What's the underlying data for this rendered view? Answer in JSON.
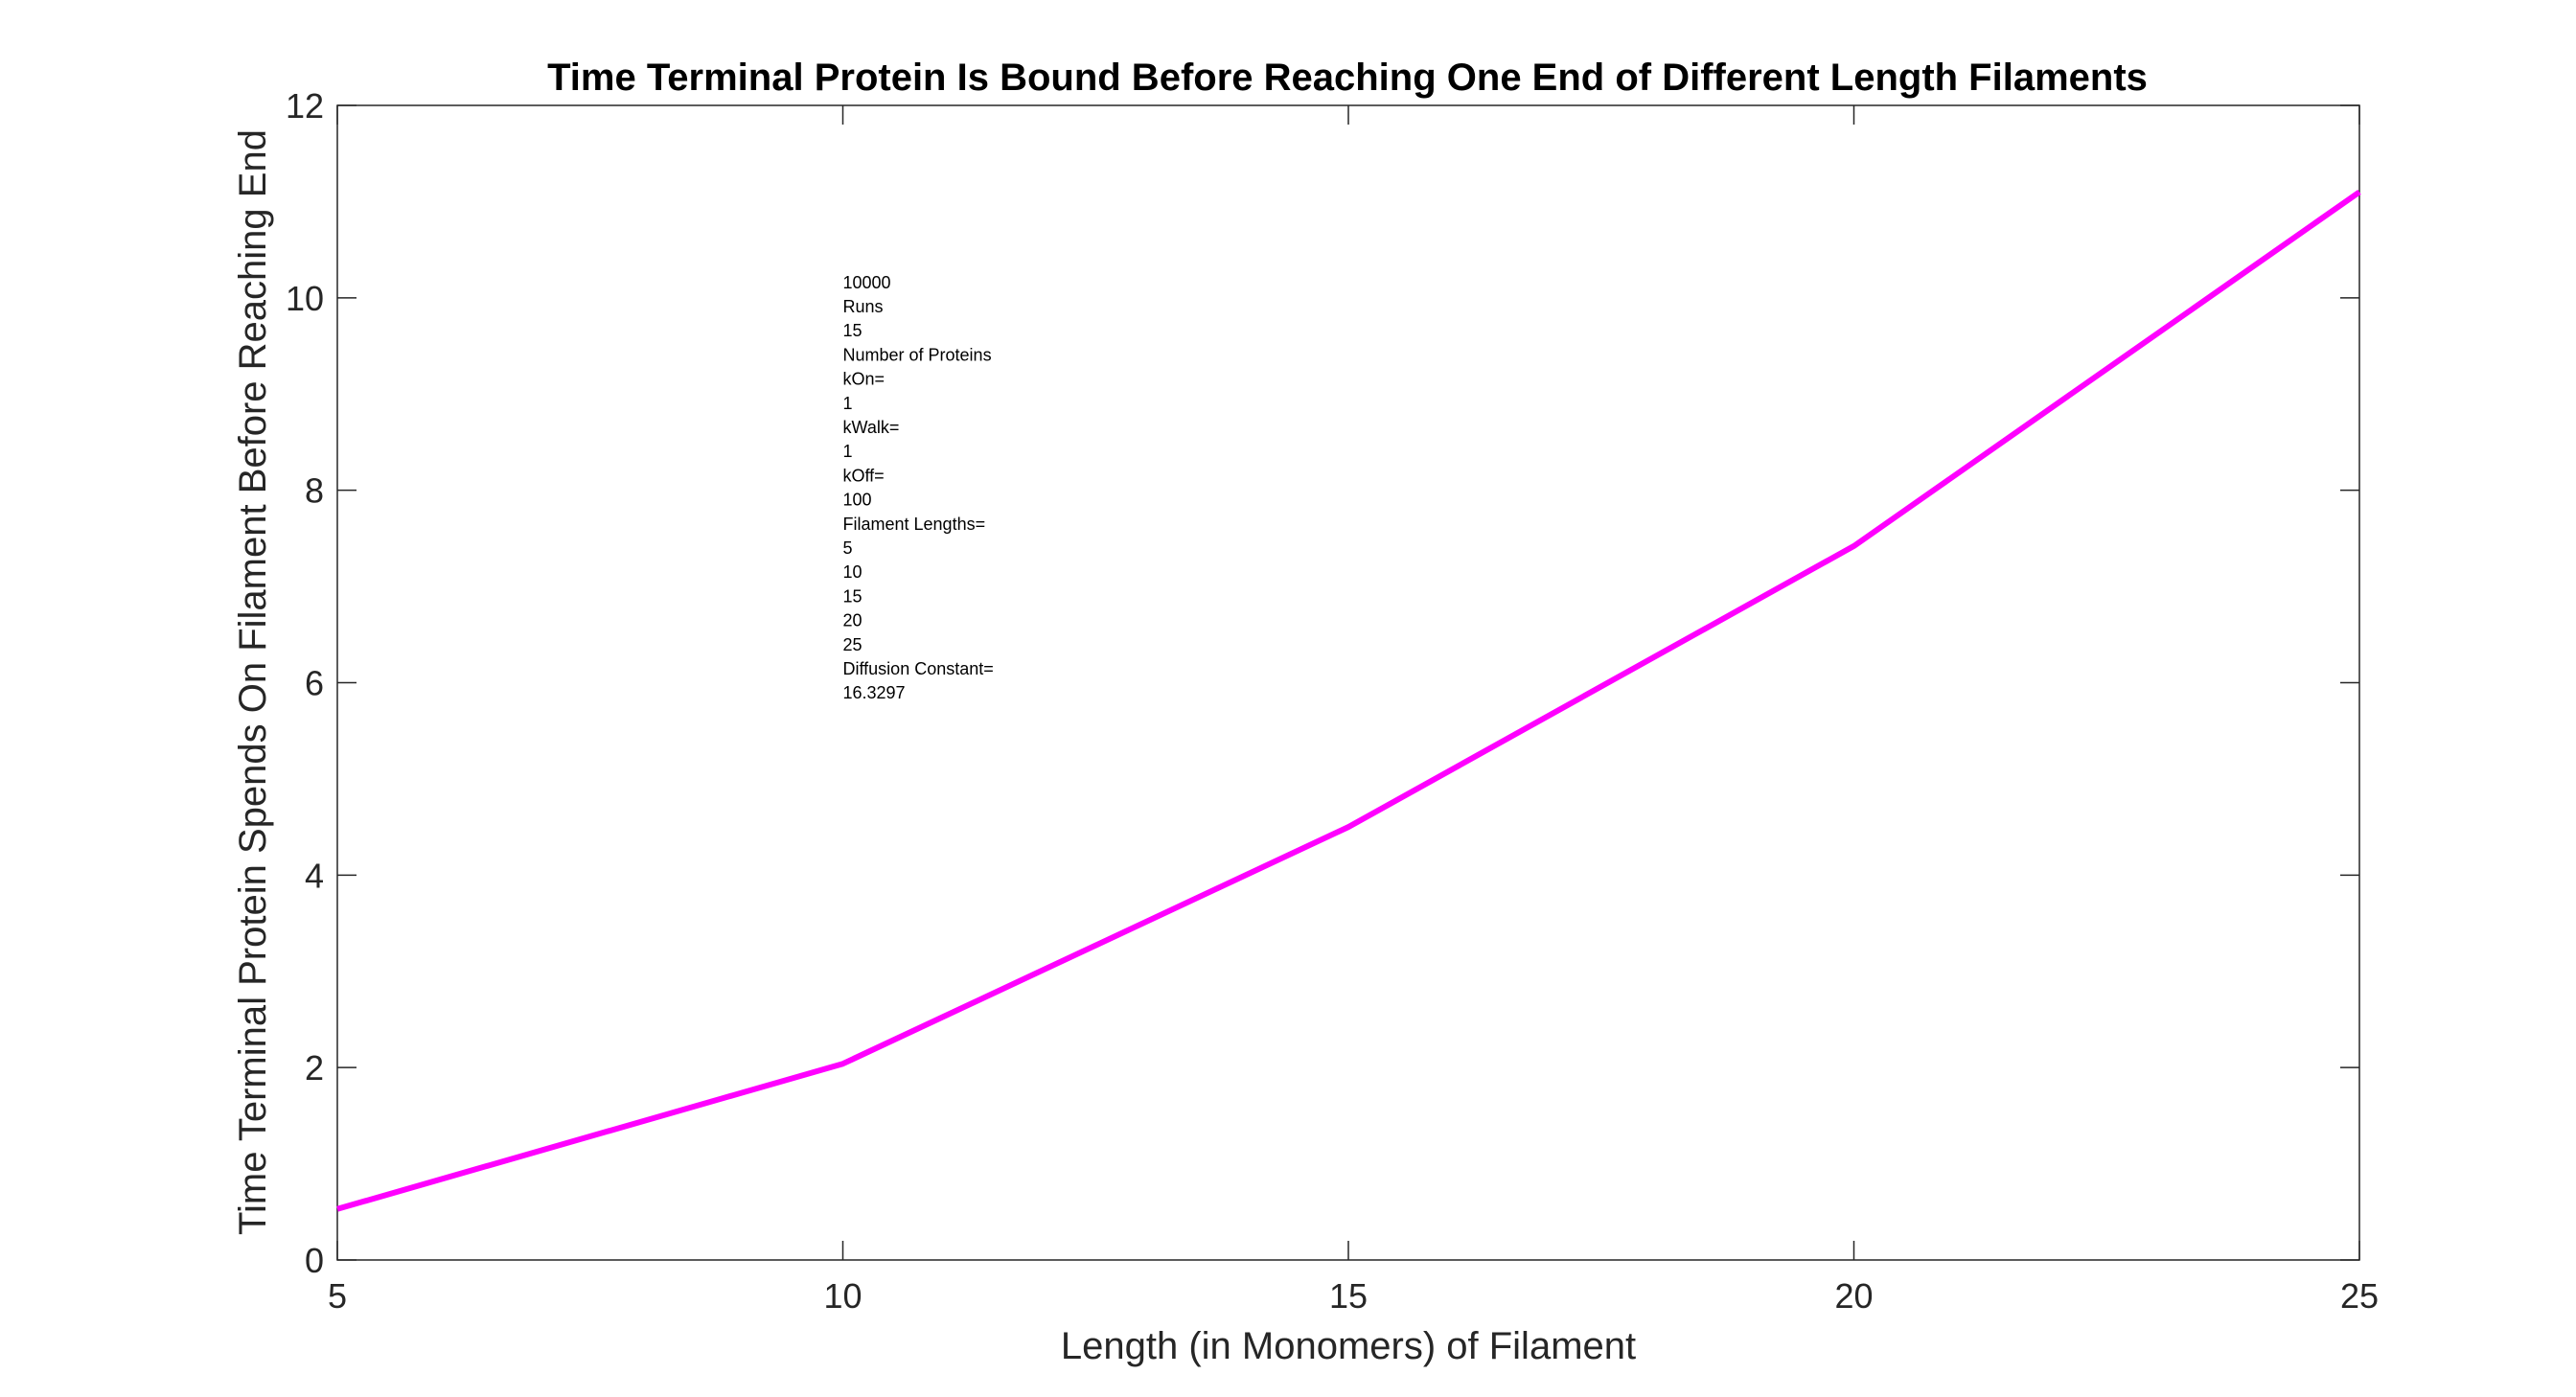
{
  "chart_data": {
    "type": "line",
    "title": "Time Terminal Protein Is Bound Before Reaching One End of Different Length Filaments",
    "xlabel": "Length (in Monomers) of Filament",
    "ylabel": "Time Terminal Protein Spends On Filament Before Reaching End",
    "xlim": [
      5,
      25
    ],
    "ylim": [
      0,
      12
    ],
    "xticks": [
      5,
      10,
      15,
      20,
      25
    ],
    "yticks": [
      0,
      2,
      4,
      6,
      8,
      10,
      12
    ],
    "grid": false,
    "series": [
      {
        "x": [
          5,
          10,
          15,
          20,
          25
        ],
        "y": [
          0.53,
          2.04,
          4.5,
          7.42,
          11.1
        ],
        "color": "#ff00ff"
      }
    ],
    "annotation_lines": [
      "10000",
      "Runs",
      "15",
      "Number of Proteins",
      "kOn=",
      "1",
      "kWalk=",
      "1",
      "kOff=",
      "100",
      "Filament Lengths=",
      "5",
      "10",
      "15",
      "20",
      "25",
      "Diffusion Constant=",
      "16.3297"
    ]
  }
}
